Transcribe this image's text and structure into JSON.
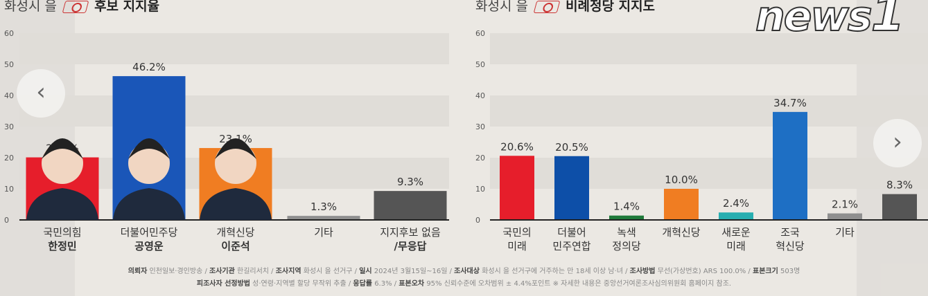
{
  "left_title": {
    "prefix": "화성시 을",
    "main": "후보 지지율"
  },
  "right_title": {
    "prefix": "화성시 을",
    "main": "비례정당 지지도"
  },
  "chart_data": [
    {
      "type": "bar",
      "title": "화성시 을 후보 지지율",
      "ylim": [
        0,
        60
      ],
      "yticks": [
        0,
        10,
        20,
        30,
        40,
        50,
        60
      ],
      "categories": [
        "국민의힘 한정민",
        "더불어민주당 공영운",
        "개혁신당 이준석",
        "기타",
        "지지후보 없음/무응답"
      ],
      "labels": [
        [
          "국민의힘",
          "한정민"
        ],
        [
          "더불어민주당",
          "공영운"
        ],
        [
          "개혁신당",
          "이준석"
        ],
        [
          "기타",
          ""
        ],
        [
          "지지후보 없음",
          "/무응답"
        ]
      ],
      "values": [
        20.1,
        46.2,
        23.1,
        1.3,
        9.3
      ],
      "value_labels": [
        "20.1%",
        "46.2%",
        "23.1%",
        "1.3%",
        "9.3%"
      ],
      "colors": [
        "#e61e2b",
        "#1a56b8",
        "#f07d22",
        "#8f8f8f",
        "#555555"
      ]
    },
    {
      "type": "bar",
      "title": "화성시 을 비례정당 지지도",
      "ylim": [
        0,
        60
      ],
      "yticks": [
        0,
        10,
        20,
        30,
        40,
        50,
        60
      ],
      "categories": [
        "국민의미래",
        "더불어민주연합",
        "녹색정의당",
        "개혁신당",
        "새로운미래",
        "조국혁신당",
        "기타",
        ""
      ],
      "labels": [
        [
          "국민의",
          "미래"
        ],
        [
          "더불어",
          "민주연합"
        ],
        [
          "녹색",
          "정의당"
        ],
        [
          "개혁신당",
          ""
        ],
        [
          "새로운",
          "미래"
        ],
        [
          "조국",
          "혁신당"
        ],
        [
          "기타",
          ""
        ],
        [
          "",
          ""
        ]
      ],
      "values": [
        20.6,
        20.5,
        1.4,
        10.0,
        2.4,
        34.7,
        2.1,
        8.3
      ],
      "value_labels": [
        "20.6%",
        "20.5%",
        "1.4%",
        "10.0%",
        "2.4%",
        "34.7%",
        "2.1%",
        "8.3%"
      ],
      "colors": [
        "#e61e2b",
        "#0d4fa8",
        "#1f7a3a",
        "#f07d22",
        "#27aeb0",
        "#1e6fc4",
        "#8f8f8f",
        "#555555"
      ]
    }
  ],
  "footer": {
    "line1": [
      [
        "의뢰자",
        "인천일보·경인방송"
      ],
      [
        "조사기관",
        "한길리서치"
      ],
      [
        "조사지역",
        "화성시 을 선거구"
      ],
      [
        "일시",
        "2024년 3월15일~16일"
      ],
      [
        "조사대상",
        "화성시 을 선거구에 거주하는 만 18세 이상 남·녀"
      ],
      [
        "조사방법",
        "무선(가상번호) ARS 100.0%"
      ],
      [
        "표본크기",
        "503명"
      ]
    ],
    "line2": [
      [
        "피조사자 선정방법",
        "성·연령·지역별 할당 무작위 추출"
      ],
      [
        "응답률",
        "6.3%"
      ],
      [
        "표본오차",
        "95% 신뢰수준에 오차범위 ± 4.4%포인트 ※ 자세한 내용은 중앙선거여론조사심의위원회 홈페이지 참조."
      ]
    ]
  },
  "nav": {
    "prev": "‹",
    "next": "›"
  },
  "watermark": "news1"
}
